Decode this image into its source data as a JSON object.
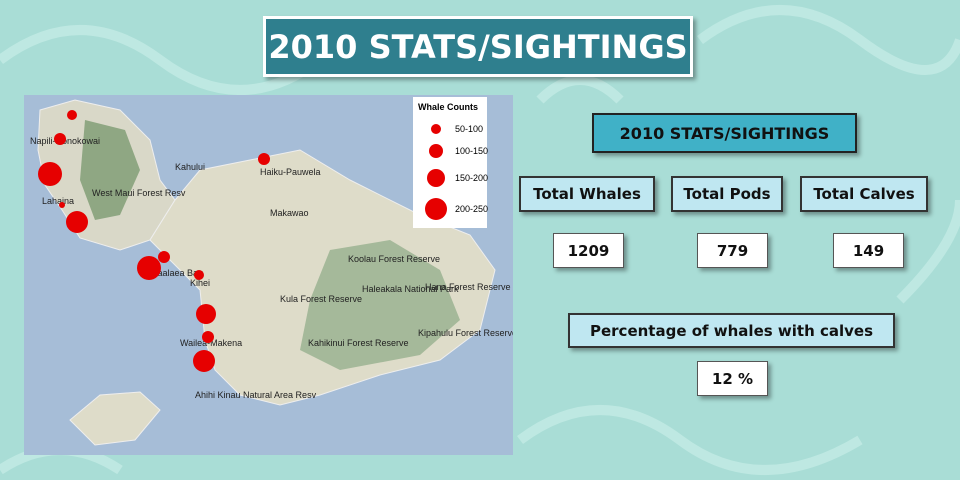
{
  "slide": {
    "title": "2010 STATS/SIGHTINGS"
  },
  "map": {
    "legend": {
      "title": "Whale Counts",
      "items": [
        "50-100",
        "100-150",
        "150-200",
        "200-250"
      ]
    },
    "places": [
      "Napili-Honokowai",
      "Lahaina",
      "West Maui Forest Resv",
      "Kahului",
      "Haiku-Pauwela",
      "Makawao",
      "Koolau Forest Reserve",
      "Haleakala National Park",
      "Hana Forest Reserve",
      "Kula Forest Reserve",
      "Maalaea Bay",
      "Kihei",
      "Wailea-Makena",
      "Kahikinui Forest Reserve",
      "Kipahulu Forest Reserve",
      "Ahihi Kinau Natural Area Resv"
    ]
  },
  "stats": {
    "heading": "2010 STATS/SIGHTINGS",
    "cards": [
      {
        "label": "Total Whales",
        "value": 1209
      },
      {
        "label": "Total Pods",
        "value": 779
      },
      {
        "label": "Total Calves",
        "value": 149
      }
    ],
    "percentage": {
      "label": "Percentage of whales with calves",
      "value": "12 %"
    }
  }
}
